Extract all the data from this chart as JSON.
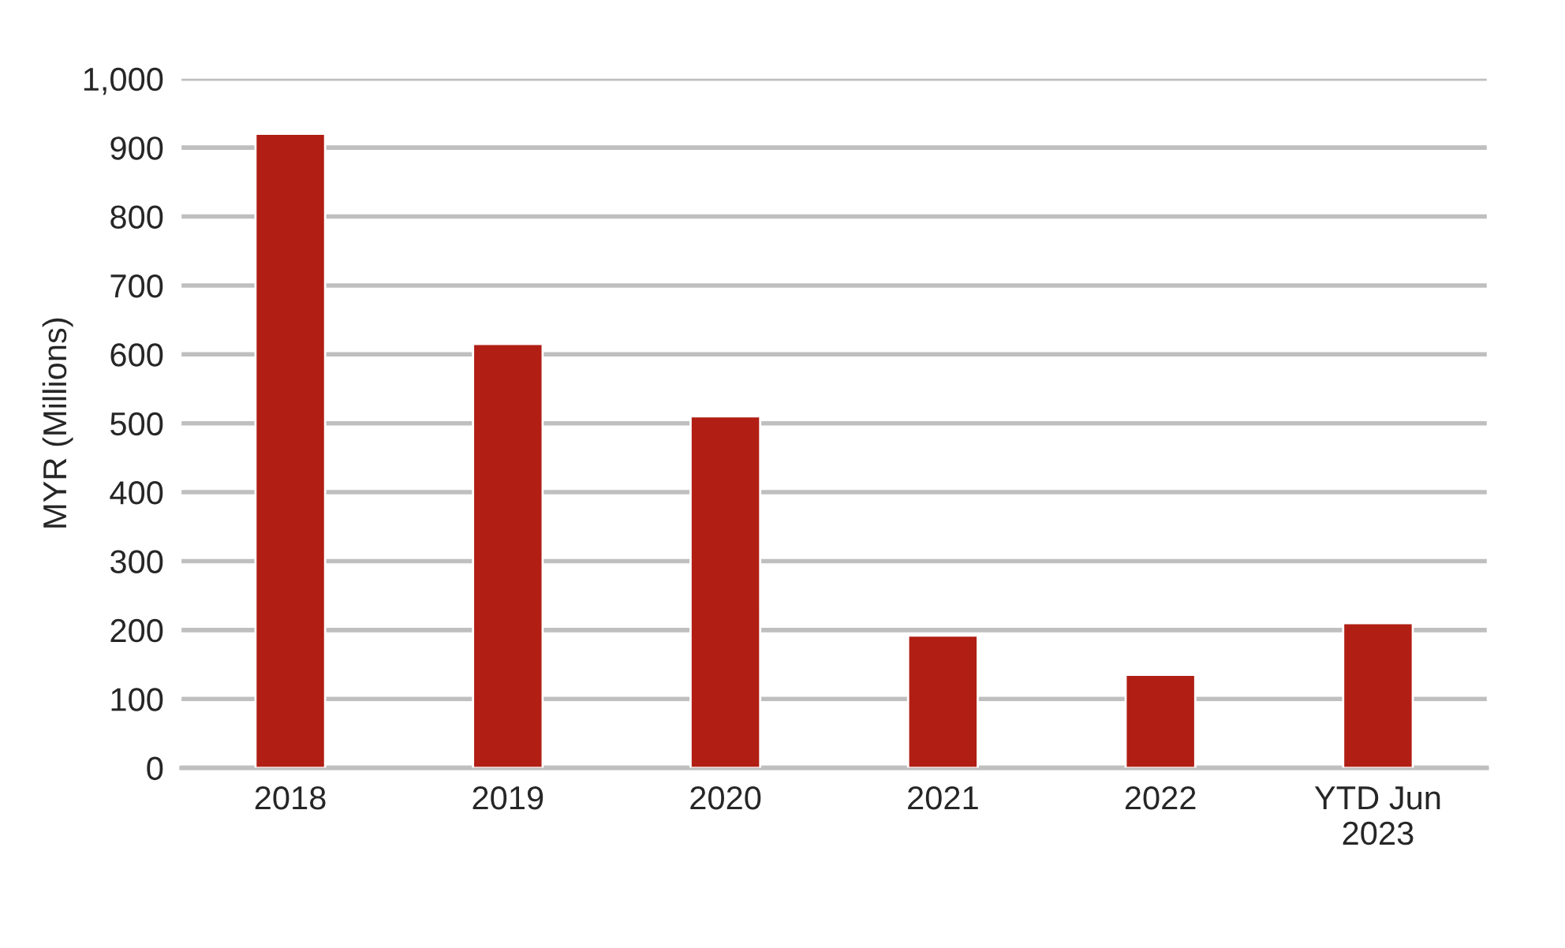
{
  "chart_data": {
    "type": "bar",
    "ylabel": "MYR (Millions)",
    "categories": [
      "2018",
      "2019",
      "2020",
      "2021",
      "2022",
      "YTD Jun\n2023"
    ],
    "values": [
      920,
      615,
      510,
      192,
      135,
      210
    ],
    "color": "#b01e14",
    "ylim": [
      0,
      1000
    ],
    "yticks": [
      0,
      100,
      200,
      300,
      400,
      500,
      600,
      700,
      800,
      900,
      {
        "value": 1000,
        "label": "1,000"
      }
    ],
    "grid": "y"
  }
}
